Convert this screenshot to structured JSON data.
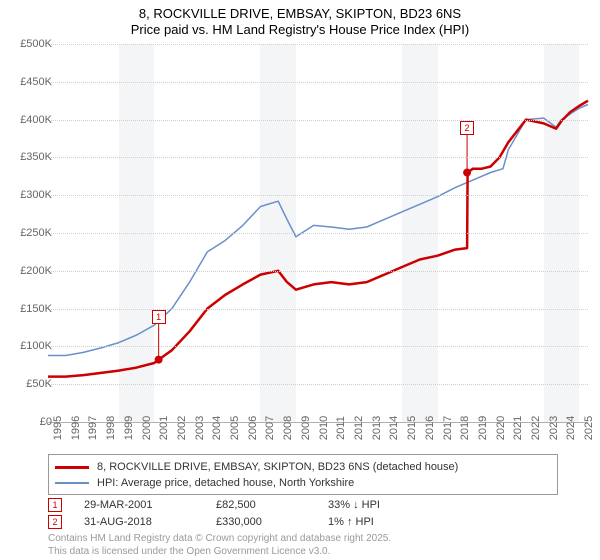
{
  "title": {
    "line1": "8, ROCKVILLE DRIVE, EMBSAY, SKIPTON, BD23 6NS",
    "line2": "Price paid vs. HM Land Registry's House Price Index (HPI)",
    "fontsize": 13,
    "color": "#000000"
  },
  "chart": {
    "type": "line",
    "background_color": "#ffffff",
    "shade_color": "#f4f5f7",
    "grid_color": "#cfcfcf",
    "axis_color": "#b0b0b0",
    "label_color": "#666666",
    "label_fontsize": 11,
    "xlim": [
      1995,
      2025.5
    ],
    "ylim": [
      0,
      500
    ],
    "ytick_step": 50,
    "ylabels": [
      "£0",
      "£50K",
      "£100K",
      "£150K",
      "£200K",
      "£250K",
      "£300K",
      "£350K",
      "£400K",
      "£450K",
      "£500K"
    ],
    "xlabels": [
      "1995",
      "1996",
      "1997",
      "1998",
      "1999",
      "2000",
      "2001",
      "2002",
      "2003",
      "2004",
      "2005",
      "2006",
      "2007",
      "2008",
      "2009",
      "2010",
      "2011",
      "2012",
      "2013",
      "2014",
      "2015",
      "2016",
      "2017",
      "2018",
      "2019",
      "2020",
      "2021",
      "2022",
      "2023",
      "2024",
      "2025"
    ],
    "shaded_x_ranges": [
      [
        1999,
        2001
      ],
      [
        2007,
        2009
      ],
      [
        2015,
        2017
      ],
      [
        2023,
        2025
      ]
    ],
    "series": [
      {
        "name": "price_paid",
        "label": "8, ROCKVILLE DRIVE, EMBSAY, SKIPTON, BD23 6NS (detached house)",
        "color": "#cc0000",
        "width": 2.5,
        "x": [
          1995,
          1996,
          1997,
          1998,
          1999,
          2000,
          2001,
          2001.25,
          2002,
          2003,
          2004,
          2005,
          2006,
          2007,
          2008,
          2008.5,
          2009,
          2010,
          2011,
          2012,
          2013,
          2014,
          2015,
          2016,
          2017,
          2018,
          2018.67,
          2018.7,
          2019,
          2019.5,
          2020,
          2020.5,
          2021,
          2022,
          2023,
          2023.7,
          2024,
          2024.5,
          2025,
          2025.5
        ],
        "y": [
          60,
          60,
          62,
          65,
          68,
          72,
          78,
          82.5,
          95,
          120,
          150,
          168,
          182,
          195,
          200,
          185,
          175,
          182,
          185,
          182,
          185,
          195,
          205,
          215,
          220,
          228,
          230,
          330,
          335,
          335,
          338,
          350,
          370,
          400,
          395,
          388,
          398,
          410,
          418,
          425
        ]
      },
      {
        "name": "hpi",
        "label": "HPI: Average price, detached house, North Yorkshire",
        "color": "#6b8fc9",
        "width": 1.5,
        "x": [
          1995,
          1996,
          1997,
          1998,
          1999,
          2000,
          2001,
          2002,
          2003,
          2004,
          2005,
          2006,
          2007,
          2008,
          2008.5,
          2009,
          2010,
          2011,
          2012,
          2013,
          2014,
          2015,
          2016,
          2017,
          2018,
          2019,
          2020,
          2020.7,
          2021,
          2022,
          2023,
          2023.7,
          2024,
          2025,
          2025.5
        ],
        "y": [
          88,
          88,
          92,
          98,
          105,
          115,
          128,
          150,
          185,
          225,
          240,
          260,
          285,
          292,
          268,
          245,
          260,
          258,
          255,
          258,
          268,
          278,
          288,
          298,
          310,
          320,
          330,
          335,
          360,
          400,
          402,
          390,
          400,
          415,
          420
        ]
      }
    ],
    "sale_markers": [
      {
        "id": "1",
        "x": 2001.25,
        "y": 82.5,
        "box_y_offset": -50
      },
      {
        "id": "2",
        "x": 2018.67,
        "y": 330,
        "box_y_offset": -52
      }
    ]
  },
  "legend": {
    "border_color": "#999999",
    "fontsize": 11,
    "items": [
      {
        "color": "#cc0000",
        "width": 3,
        "label": "8, ROCKVILLE DRIVE, EMBSAY, SKIPTON, BD23 6NS (detached house)"
      },
      {
        "color": "#6b8fc9",
        "width": 2,
        "label": "HPI: Average price, detached house, North Yorkshire"
      }
    ]
  },
  "sales_table": {
    "fontsize": 11,
    "rows": [
      {
        "marker": "1",
        "date": "29-MAR-2001",
        "price": "£82,500",
        "delta": "33% ↓ HPI"
      },
      {
        "marker": "2",
        "date": "31-AUG-2018",
        "price": "£330,000",
        "delta": "1% ↑ HPI"
      }
    ]
  },
  "attribution": {
    "line1": "Contains HM Land Registry data © Crown copyright and database right 2025.",
    "line2": "This data is licensed under the Open Government Licence v3.0.",
    "color": "#9a9a9a",
    "fontsize": 10
  }
}
